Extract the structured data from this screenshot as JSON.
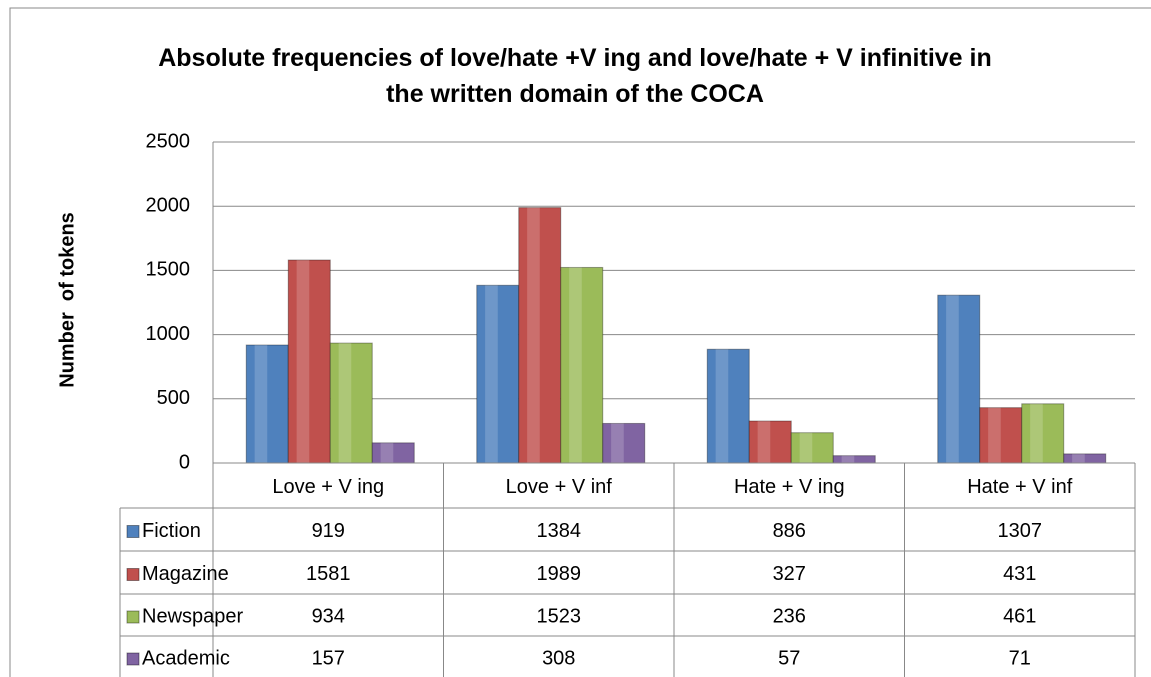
{
  "chart_data": {
    "type": "bar",
    "title": "Absolute frequencies of love/hate +V ing and love/hate + V infinitive in the written domain of the COCA",
    "y_label": "Number  of tokens",
    "categories": [
      "Love + V ing",
      "Love + V inf",
      "Hate + V ing",
      "Hate + V inf"
    ],
    "series": [
      {
        "name": "Fiction",
        "color": "#4f81bd",
        "values": [
          919,
          1384,
          886,
          1307
        ]
      },
      {
        "name": "Magazine",
        "color": "#c0504d",
        "values": [
          1581,
          1989,
          327,
          431
        ]
      },
      {
        "name": "Newspaper",
        "color": "#9bbb59",
        "values": [
          934,
          1523,
          236,
          461
        ]
      },
      {
        "name": "Academic",
        "color": "#8064a2",
        "values": [
          157,
          308,
          57,
          71
        ]
      }
    ],
    "ylim": [
      0,
      2500
    ],
    "yticks": [
      0,
      500,
      1000,
      1500,
      2000,
      2500
    ],
    "grid": true,
    "data_table": true
  }
}
